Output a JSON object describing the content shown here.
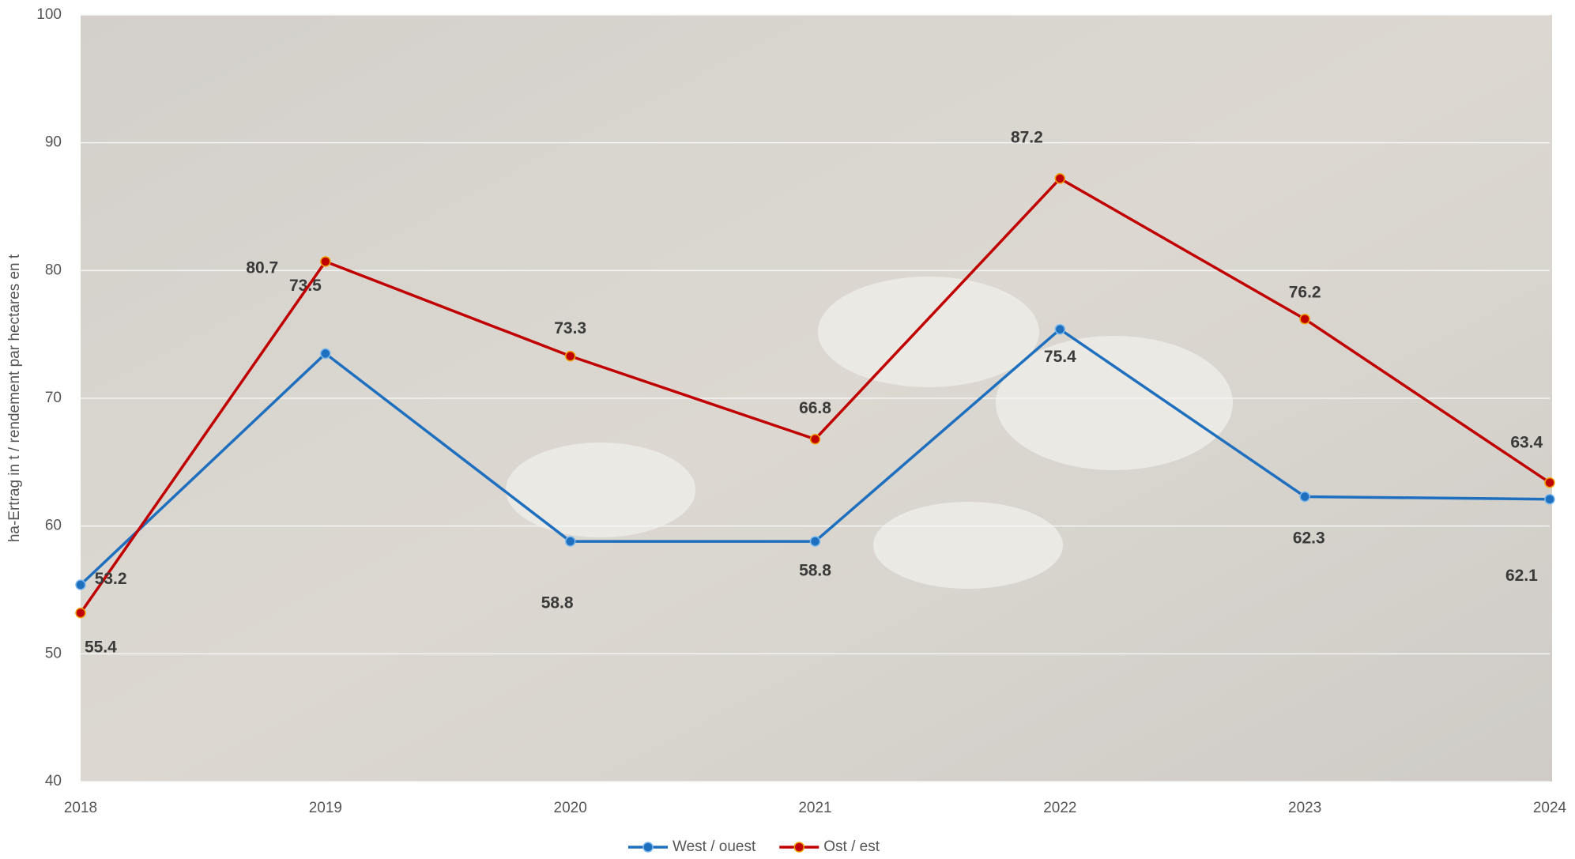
{
  "chart_data": {
    "type": "line",
    "y_label": "ha-Ertrag in t / rendement par hectares en t",
    "categories": [
      "2018",
      "2019",
      "2020",
      "2021",
      "2022",
      "2023",
      "2024"
    ],
    "series": [
      {
        "name": "West / ouest",
        "color": "#1f6fbf",
        "values": [
          55.4,
          73.5,
          58.8,
          58.8,
          75.4,
          62.3,
          62.1
        ]
      },
      {
        "name": "Ost / est",
        "color": "#c00000",
        "values": [
          53.2,
          80.7,
          73.3,
          66.8,
          87.2,
          76.2,
          63.4
        ]
      }
    ],
    "ylim": [
      40,
      100
    ],
    "yticks": [
      40,
      50,
      60,
      70,
      80,
      90,
      100
    ],
    "grid": true,
    "legend": "bottom"
  }
}
